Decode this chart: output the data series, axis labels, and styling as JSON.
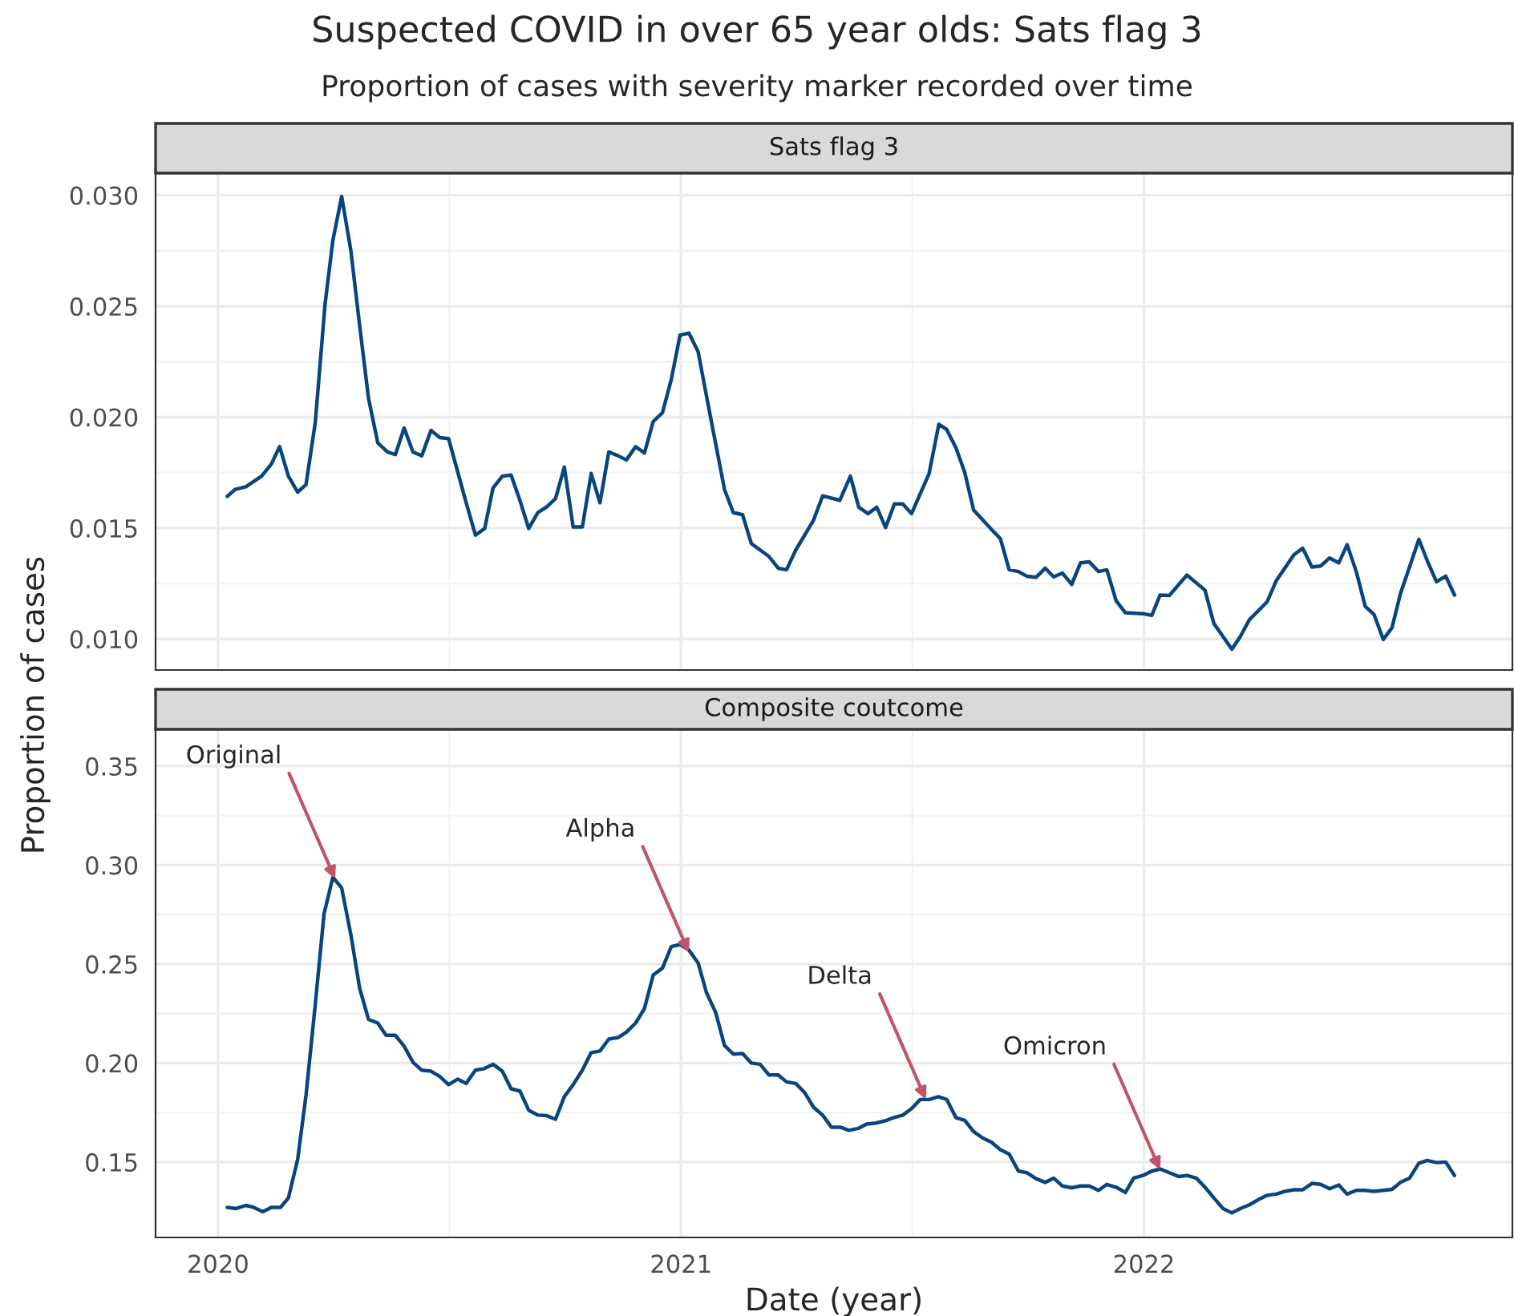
{
  "chart_data": [
    {
      "type": "line",
      "title": "Suspected COVID in over 65 year olds: Sats flag 3",
      "subtitle": "Proportion of cases with severity marker recorded over time",
      "ylabel": "Proportion of cases",
      "annotations": [
        "Sats flag 3"
      ],
      "series": [
        {
          "color": "#08457e",
          "x": [
            2020.02,
            2020.037,
            2020.06,
            2020.094,
            2020.115,
            2020.133,
            2020.152,
            2020.172,
            2020.19,
            2020.21,
            2020.231,
            2020.248,
            2020.267,
            2020.287,
            2020.306,
            2020.325,
            2020.345,
            2020.366,
            2020.383,
            2020.402,
            2020.421,
            2020.44,
            2020.46,
            2020.479,
            2020.498,
            2020.536,
            2020.556,
            2020.576,
            2020.594,
            2020.614,
            2020.633,
            2020.652,
            2020.671,
            2020.691,
            2020.709,
            2020.729,
            2020.748,
            2020.767,
            2020.787,
            2020.806,
            2020.825,
            2020.844,
            2020.864,
            2020.882,
            2020.902,
            2020.921,
            2020.94,
            2020.96,
            2020.979,
            2020.998,
            2021.017,
            2021.037,
            2021.055,
            2021.075,
            2021.094,
            2021.113,
            2021.133,
            2021.152,
            2021.19,
            2021.21,
            2021.228,
            2021.248,
            2021.286,
            2021.306,
            2021.343,
            2021.366,
            2021.384,
            2021.404,
            2021.423,
            2021.442,
            2021.461,
            2021.479,
            2021.498,
            2021.536,
            2021.557,
            2021.574,
            2021.594,
            2021.613,
            2021.632,
            2021.671,
            2021.69,
            2021.709,
            2021.729,
            2021.747,
            2021.767,
            2021.787,
            2021.805,
            2021.824,
            2021.844,
            2021.863,
            2021.882,
            2021.902,
            2021.92,
            2021.94,
            2021.96,
            2021.998,
            2022.017,
            2022.035,
            2022.055,
            2022.093,
            2022.132,
            2022.151,
            2022.19,
            2022.208,
            2022.228,
            2022.266,
            2022.286,
            2022.324,
            2022.343,
            2022.363,
            2022.382,
            2022.401,
            2022.421,
            2022.439,
            2022.459,
            2022.478,
            2022.497,
            2022.517,
            2022.536,
            2022.554,
            2022.594,
            2022.612,
            2022.632,
            2022.652,
            2022.671
          ],
          "values": [
            0.01643,
            0.01674,
            0.01686,
            0.01734,
            0.01788,
            0.01867,
            0.01734,
            0.01662,
            0.01696,
            0.01976,
            0.02507,
            0.02797,
            0.02995,
            0.02749,
            0.0241,
            0.02085,
            0.01884,
            0.01843,
            0.01831,
            0.01951,
            0.01843,
            0.01826,
            0.0194,
            0.01908,
            0.01903,
            0.01614,
            0.01468,
            0.01498,
            0.01681,
            0.01734,
            0.01739,
            0.01625,
            0.01498,
            0.0157,
            0.01594,
            0.01633,
            0.01775,
            0.01505,
            0.01505,
            0.01746,
            0.01614,
            0.01843,
            0.01826,
            0.01807,
            0.01867,
            0.01838,
            0.0198,
            0.0202,
            0.02169,
            0.0237,
            0.02379,
            0.02295,
            0.02096,
            0.01879,
            0.01674,
            0.0157,
            0.0156,
            0.0143,
            0.01372,
            0.01319,
            0.01312,
            0.01401,
            0.01534,
            0.01645,
            0.01625,
            0.01734,
            0.01594,
            0.01565,
            0.01594,
            0.01502,
            0.01609,
            0.01609,
            0.01565,
            0.01746,
            0.01968,
            0.01944,
            0.01862,
            0.01751,
            0.01582,
            0.01493,
            0.01452,
            0.01312,
            0.01304,
            0.01283,
            0.01278,
            0.01319,
            0.0128,
            0.01297,
            0.01246,
            0.01343,
            0.01348,
            0.01304,
            0.01312,
            0.01172,
            0.01118,
            0.01114,
            0.01106,
            0.01198,
            0.01196,
            0.01288,
            0.0122,
            0.0107,
            0.00954,
            0.0101,
            0.01087,
            0.01167,
            0.01263,
            0.01379,
            0.01409,
            0.01324,
            0.01329,
            0.01365,
            0.01343,
            0.01425,
            0.01302,
            0.01147,
            0.01111,
            0.00998,
            0.01051,
            0.01203,
            0.01449,
            0.01353,
            0.01258,
            0.01283,
            0.01198
          ]
        }
      ],
      "xlim": [
        2019.865,
        2022.796
      ],
      "xticks": [
        2020,
        2021,
        2022
      ],
      "ylim": [
        0.0086,
        0.031
      ],
      "yticks": [
        {
          "value": 0.01,
          "label": "0.010"
        },
        {
          "value": 0.015,
          "label": "0.015"
        },
        {
          "value": 0.02,
          "label": "0.020"
        },
        {
          "value": 0.025,
          "label": "0.025"
        },
        {
          "value": 0.03,
          "label": "0.030"
        }
      ],
      "tick_labels": "y",
      "grid": true,
      "marker": "none",
      "line_style": "solid"
    },
    {
      "type": "line",
      "title": "Composite coutcome",
      "xlabel": "Date (year)",
      "annotations": [
        {
          "text": "Original",
          "x": 2020.253,
          "y": 0.293
        },
        {
          "text": "Alpha",
          "x": 2021.017,
          "y": 0.256
        },
        {
          "text": "Delta",
          "x": 2021.529,
          "y": 0.1816
        },
        {
          "text": "Omicron",
          "x": 2022.035,
          "y": 0.146
        }
      ],
      "series": [
        {
          "color": "#08457e",
          "x": [
            2020.02,
            2020.039,
            2020.06,
            2020.077,
            2020.097,
            2020.115,
            2020.135,
            2020.152,
            2020.172,
            2020.19,
            2020.21,
            2020.229,
            2020.248,
            2020.267,
            2020.287,
            2020.306,
            2020.325,
            2020.345,
            2020.363,
            2020.383,
            2020.402,
            2020.421,
            2020.44,
            2020.46,
            2020.479,
            2020.498,
            2020.518,
            2020.536,
            2020.556,
            2020.575,
            2020.594,
            2020.614,
            2020.633,
            2020.652,
            2020.671,
            2020.691,
            2020.709,
            2020.729,
            2020.748,
            2020.767,
            2020.787,
            2020.806,
            2020.825,
            2020.844,
            2020.864,
            2020.882,
            2020.902,
            2020.921,
            2020.94,
            2020.96,
            2020.979,
            2020.998,
            2021.017,
            2021.037,
            2021.055,
            2021.075,
            2021.094,
            2021.113,
            2021.133,
            2021.152,
            2021.171,
            2021.19,
            2021.21,
            2021.228,
            2021.248,
            2021.267,
            2021.286,
            2021.306,
            2021.325,
            2021.344,
            2021.363,
            2021.383,
            2021.401,
            2021.421,
            2021.441,
            2021.459,
            2021.479,
            2021.498,
            2021.517,
            2021.536,
            2021.556,
            2021.574,
            2021.594,
            2021.613,
            2021.632,
            2021.652,
            2021.671,
            2021.69,
            2021.709,
            2021.729,
            2021.747,
            2021.767,
            2021.787,
            2021.805,
            2021.824,
            2021.844,
            2021.863,
            2021.882,
            2021.902,
            2021.92,
            2021.94,
            2021.96,
            2021.978,
            2021.998,
            2022.017,
            2022.035,
            2022.055,
            2022.075,
            2022.093,
            2022.113,
            2022.132,
            2022.151,
            2022.171,
            2022.19,
            2022.208,
            2022.228,
            2022.248,
            2022.266,
            2022.286,
            2022.305,
            2022.324,
            2022.343,
            2022.363,
            2022.382,
            2022.401,
            2022.421,
            2022.439,
            2022.459,
            2022.478,
            2022.497,
            2022.517,
            2022.536,
            2022.554,
            2022.574,
            2022.594,
            2022.612,
            2022.632,
            2022.652,
            2022.671
          ],
          "values": [
            0.1271,
            0.1265,
            0.1281,
            0.1271,
            0.1249,
            0.1271,
            0.1271,
            0.1319,
            0.1514,
            0.1838,
            0.2296,
            0.2755,
            0.2939,
            0.2885,
            0.2647,
            0.2377,
            0.2221,
            0.2202,
            0.214,
            0.214,
            0.2085,
            0.2004,
            0.1964,
            0.1959,
            0.1932,
            0.1891,
            0.1919,
            0.1897,
            0.1964,
            0.1972,
            0.1994,
            0.1959,
            0.187,
            0.1859,
            0.1762,
            0.1737,
            0.1735,
            0.1716,
            0.183,
            0.1891,
            0.1964,
            0.2053,
            0.2061,
            0.2121,
            0.2129,
            0.2156,
            0.2202,
            0.2275,
            0.2445,
            0.248,
            0.2588,
            0.2599,
            0.2571,
            0.2506,
            0.2356,
            0.2255,
            0.2089,
            0.2045,
            0.2048,
            0.2,
            0.1994,
            0.194,
            0.194,
            0.1905,
            0.1897,
            0.1851,
            0.1778,
            0.1737,
            0.1676,
            0.1676,
            0.166,
            0.167,
            0.1692,
            0.1697,
            0.1708,
            0.1724,
            0.1737,
            0.177,
            0.1816,
            0.1816,
            0.183,
            0.1816,
            0.1724,
            0.1711,
            0.1654,
            0.1621,
            0.16,
            0.1562,
            0.154,
            0.1454,
            0.1446,
            0.1416,
            0.1397,
            0.1419,
            0.1379,
            0.137,
            0.1379,
            0.1379,
            0.1357,
            0.1387,
            0.1373,
            0.1346,
            0.1419,
            0.1432,
            0.1454,
            0.1465,
            0.1446,
            0.1427,
            0.1432,
            0.1419,
            0.1373,
            0.1319,
            0.1265,
            0.1243,
            0.1265,
            0.1284,
            0.1311,
            0.1332,
            0.1338,
            0.1352,
            0.136,
            0.136,
            0.1392,
            0.1387,
            0.1365,
            0.1384,
            0.1338,
            0.1357,
            0.1357,
            0.1352,
            0.1357,
            0.1362,
            0.1397,
            0.1419,
            0.1494,
            0.1508,
            0.1497,
            0.15,
            0.1432
          ]
        }
      ],
      "xlim": [
        2019.865,
        2022.796
      ],
      "xticks": [
        2020,
        2021,
        2022
      ],
      "ylim": [
        0.1119,
        0.3686
      ],
      "yticks": [
        {
          "value": 0.15,
          "label": "0.15"
        },
        {
          "value": 0.2,
          "label": "0.20"
        },
        {
          "value": 0.25,
          "label": "0.25"
        },
        {
          "value": 0.3,
          "label": "0.30"
        },
        {
          "value": 0.35,
          "label": "0.35"
        }
      ],
      "grid": true,
      "marker": "none",
      "line_style": "solid"
    }
  ]
}
